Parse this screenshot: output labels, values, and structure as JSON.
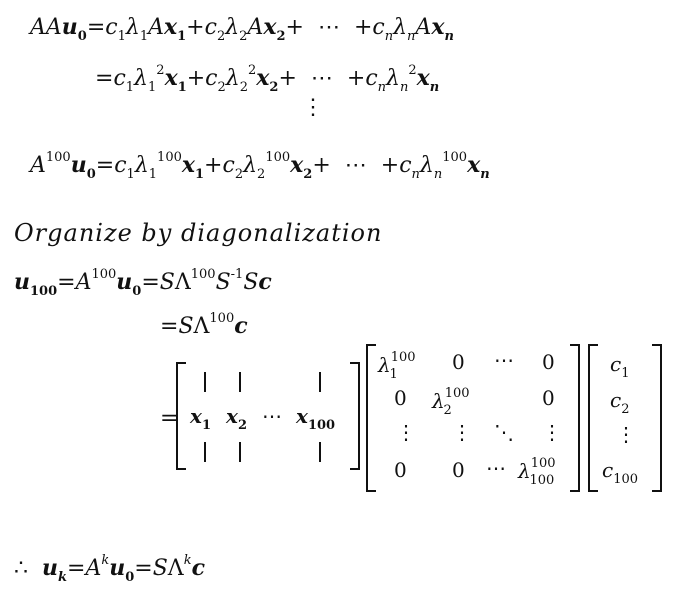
{
  "eq1_lhs": "AA",
  "u": "u",
  "zero": "0",
  "eq_sign": "=",
  "c": "c",
  "lambda": "λ",
  "A": "A",
  "x": "x",
  "one": "1",
  "two": "2",
  "n": "n",
  "plus": "+",
  "cdots": "⋯",
  "sq": "2",
  "vdots": "⋮",
  "p100": "100",
  "heading": "Organize by diagonalization",
  "S": "S",
  "Lambda": "Λ",
  "inv": "-1",
  "ddots": "⋱",
  "therefore": "∴",
  "k": "k",
  "k_sub": "k"
}
